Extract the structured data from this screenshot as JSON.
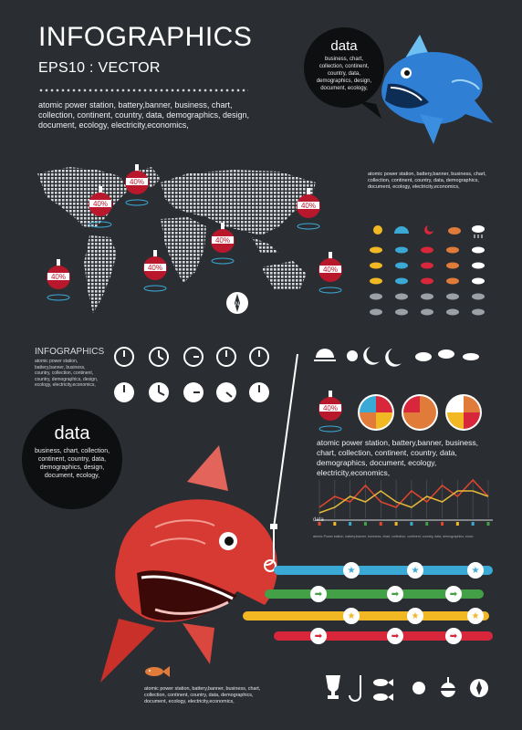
{
  "header": {
    "title": "INFOGRAPHICS",
    "subtitle": "EPS10 : VECTOR",
    "description": "atomic power station, battery,banner, business, chart, collection, continent, country, data, demographics, design, document, ecology, electricity,economics,"
  },
  "top_bubble": {
    "heading": "data",
    "text": "business, chart, collection, continent, country, data, demographics, design, document, ecology,"
  },
  "top_fish_caption": "atomic power station, battery,banner, business, chart, collection, continent, country, data, demographics, document, ecology, electricity,economics,",
  "map_markers": [
    "40%",
    "40%",
    "40%",
    "40%",
    "40%",
    "40%",
    "40%"
  ],
  "compass_label": "N",
  "small_infographics": {
    "title": "INFOGRAPHICS",
    "text": "atomic power station, battery,banner, business, country, collection, continent, country, demographics, design, ecology, electricity,economics,"
  },
  "mid_marker": "40%",
  "mid_description": "atomic power station, battery,banner, business, chart, collection, continent, country, data, demographics, document, ecology, electricity,economics,",
  "chart_data": {
    "type": "line",
    "label": "data",
    "caption": "atomic Power station, battery,banner, business, chart, collection, continent, country, data, demographics, ecolo",
    "series": [
      {
        "color": "#e3452e",
        "values": [
          2,
          4,
          3,
          6,
          3,
          2,
          5,
          3,
          6,
          4,
          7,
          4
        ]
      },
      {
        "color": "#e7b93a",
        "values": [
          1,
          2,
          4,
          3,
          5,
          3,
          2,
          4,
          3,
          5,
          5,
          4
        ]
      }
    ]
  },
  "big_bubble": {
    "heading": "data",
    "text": "business, chart, collection, continent, country, data, demographics, design, document, ecology,"
  },
  "bottom_caption": "atomic power station, battery,banner, business, chart, collection, continent, country, data, demographics, document, ecology, electricity,economics,",
  "colors": {
    "background": "#2a2e32",
    "marker_red": "#b9172c",
    "bar_blue": "#3aa9d6",
    "bar_green": "#43a047",
    "bar_yellow": "#f2b823",
    "bar_red": "#d8263b",
    "fish_red": "#d63a32",
    "fish_blue": "#2f7fd4"
  },
  "icons": [
    "trophy-icon",
    "hook-icon",
    "fish-icon",
    "sun-icon",
    "float-icon",
    "compass-icon"
  ]
}
